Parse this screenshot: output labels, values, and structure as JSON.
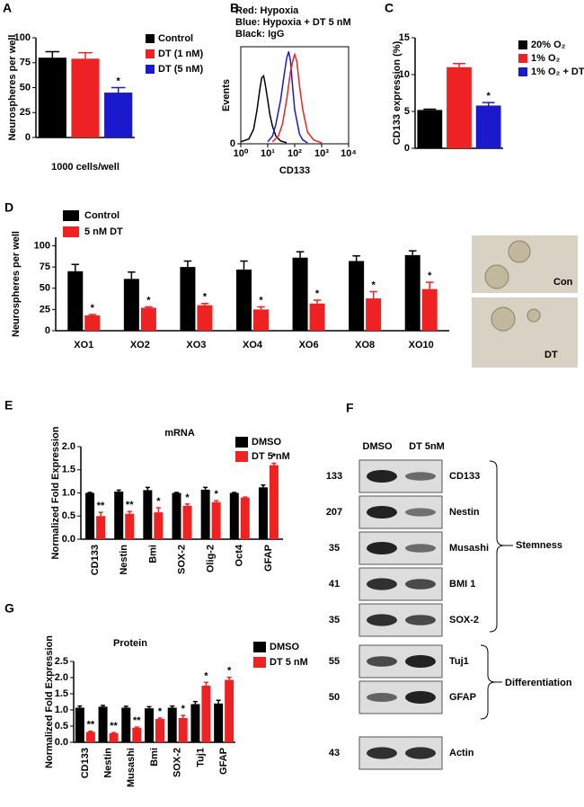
{
  "chart_data": [
    {
      "label": "A",
      "type": "bar",
      "ylabel": "Neurospheres per well",
      "xlabel": "1000 cells/well",
      "categories": [
        "Control",
        "DT (1 nM)",
        "DT (5 nM)"
      ],
      "colors": [
        "#000000",
        "#ee2222",
        "#1a1acc"
      ],
      "values": [
        80,
        79,
        45
      ],
      "errors": [
        6,
        6,
        5
      ],
      "stars": [
        null,
        null,
        "*"
      ],
      "ylim": [
        0,
        100
      ],
      "yticks": [
        0,
        25,
        50,
        75,
        100
      ],
      "legend": "upper right"
    },
    {
      "label": "B",
      "type": "line",
      "title_lines": [
        {
          "text": "Red: Hypoxia",
          "color": "#ee2222"
        },
        {
          "text": "Blue: Hypoxia + DT 5 nM",
          "color": "#1a1acc"
        },
        {
          "text": "Black: IgG",
          "color": "#000000"
        }
      ],
      "ylabel": "Events",
      "xlabel": "CD133",
      "xscale": "log",
      "xlim": [
        1,
        10000
      ],
      "xticks": [
        {
          "value": 1,
          "label": "10⁰"
        },
        {
          "value": 10,
          "label": "10¹"
        },
        {
          "value": 100,
          "label": "10²"
        },
        {
          "value": 1000,
          "label": "10³"
        },
        {
          "value": 10000,
          "label": "10⁴"
        }
      ],
      "ylim": [
        0,
        100
      ],
      "yticks": [
        0
      ],
      "series": [
        {
          "color": "#000000",
          "x": [
            1,
            2,
            3,
            4,
            5,
            6,
            7,
            8,
            10,
            12,
            15,
            20,
            30,
            50
          ],
          "values": [
            2,
            5,
            15,
            35,
            55,
            68,
            70,
            62,
            45,
            30,
            18,
            8,
            3,
            1
          ]
        },
        {
          "color": "#1a1acc",
          "x": [
            10,
            15,
            20,
            30,
            40,
            50,
            60,
            70,
            80,
            100,
            150,
            200,
            300
          ],
          "values": [
            2,
            8,
            20,
            45,
            70,
            88,
            95,
            85,
            65,
            35,
            10,
            4,
            1
          ]
        },
        {
          "color": "#ee2222",
          "x": [
            15,
            25,
            35,
            50,
            70,
            90,
            100,
            120,
            150,
            200,
            300,
            500,
            1000
          ],
          "values": [
            2,
            8,
            20,
            45,
            75,
            88,
            92,
            85,
            60,
            35,
            12,
            4,
            1
          ]
        }
      ]
    },
    {
      "label": "C",
      "type": "bar",
      "ylabel": "CD133 expression (%)",
      "categories": [
        "20% O₂",
        "1% O₂",
        "1% O₂ + DT"
      ],
      "colors": [
        "#000000",
        "#ee2222",
        "#1a1acc"
      ],
      "values": [
        5.2,
        11,
        5.8
      ],
      "errors": [
        0.1,
        0.5,
        0.4
      ],
      "stars": [
        null,
        null,
        "*"
      ],
      "ylim": [
        0,
        15
      ],
      "yticks": [
        0,
        5,
        10,
        15
      ],
      "legend": "upper right"
    },
    {
      "label": "D",
      "type": "bar",
      "ylabel": "Neurospheres per well",
      "categories": [
        "XO1",
        "XO2",
        "XO3",
        "XO4",
        "XO6",
        "XO8",
        "XO10"
      ],
      "ylim": [
        0,
        110
      ],
      "yticks": [
        0,
        25,
        50,
        75,
        100
      ],
      "legend": "upper left",
      "series": [
        {
          "name": "Control",
          "color": "#000000",
          "values": [
            70,
            61,
            75,
            72,
            86,
            82,
            89
          ],
          "errors": [
            8,
            8,
            7,
            10,
            7,
            6,
            5
          ]
        },
        {
          "name": "5 nM DT",
          "color": "#ee2222",
          "values": [
            18,
            27,
            30,
            25,
            32,
            38,
            49
          ],
          "errors": [
            1,
            1,
            2,
            3,
            4,
            8,
            8
          ],
          "stars": [
            "*",
            "*",
            "*",
            "*",
            "*",
            "*",
            "*"
          ]
        }
      ]
    },
    {
      "label": "E",
      "type": "bar",
      "title": "mRNA",
      "ylabel": "Normalized Fold Expression",
      "categories": [
        "CD133",
        "Nestin",
        "Bmi",
        "SOX-2",
        "Olig-2",
        "Oct4",
        "GFAP"
      ],
      "category_colors": [
        "#000000",
        "#000000",
        "#000000",
        "#000000",
        "#000000",
        "#000000",
        "#ee2222"
      ],
      "ylim": [
        0,
        2
      ],
      "yticks": [
        {
          "value": 0,
          "label": "0.0"
        },
        0.5,
        {
          "value": 1,
          "label": "1.0"
        },
        1.5,
        {
          "value": 2,
          "label": "2.0"
        }
      ],
      "legend": "upper right",
      "series": [
        {
          "name": "DMSO",
          "color": "#000000",
          "values": [
            1,
            1.03,
            1.06,
            1,
            1.07,
            1,
            1.12
          ],
          "errors": [
            0.01,
            0.03,
            0.06,
            0.01,
            0.05,
            0.01,
            0.05
          ]
        },
        {
          "name": "DT 5 nM",
          "color": "#ee2222",
          "values": [
            0.5,
            0.55,
            0.58,
            0.72,
            0.8,
            0.9,
            1.6
          ],
          "errors": [
            0.08,
            0.05,
            0.1,
            0.04,
            0.03,
            0.01,
            0.04
          ],
          "stars": [
            "**",
            "**",
            "*",
            "*",
            "*",
            null,
            "*"
          ]
        }
      ]
    },
    {
      "label": "G",
      "type": "bar",
      "title": "Protein",
      "ylabel": "Normalized Fold Expression",
      "categories": [
        "CD133",
        "Nestin",
        "Musashi",
        "Bmi",
        "SOX-2",
        "Tuj1",
        "GFAP"
      ],
      "category_colors": [
        "#000000",
        "#000000",
        "#000000",
        "#000000",
        "#000000",
        "#ee2222",
        "#ee2222"
      ],
      "ylim": [
        0,
        2.5
      ],
      "yticks": [
        {
          "value": 0,
          "label": "0.0"
        },
        0.5,
        {
          "value": 1,
          "label": "1.0"
        },
        1.5,
        {
          "value": 2,
          "label": "2.0"
        },
        2.5
      ],
      "legend": "upper right",
      "series": [
        {
          "name": "DMSO",
          "color": "#000000",
          "values": [
            1.07,
            1.1,
            1.07,
            1.05,
            1.07,
            1.18,
            1.2
          ],
          "errors": [
            0.05,
            0.04,
            0.04,
            0.05,
            0.05,
            0.08,
            0.1
          ]
        },
        {
          "name": "DT 5 nM",
          "color": "#ee2222",
          "values": [
            0.32,
            0.28,
            0.45,
            0.72,
            0.75,
            1.75,
            1.93
          ],
          "errors": [
            0.02,
            0.02,
            0.02,
            0.03,
            0.08,
            0.1,
            0.08
          ],
          "stars": [
            "**",
            "**",
            "**",
            "*",
            "*",
            "*",
            "*"
          ]
        }
      ]
    }
  ],
  "photos": [
    {
      "label": "Con"
    },
    {
      "label": "DT"
    }
  ],
  "blot": {
    "label": "F",
    "lanes": [
      "DMSO",
      "DT 5nM"
    ],
    "rows": [
      {
        "mw": "133",
        "name": "CD133"
      },
      {
        "mw": "207",
        "name": "Nestin"
      },
      {
        "mw": "35",
        "name": "Musashi"
      },
      {
        "mw": "41",
        "name": "BMI 1"
      },
      {
        "mw": "35",
        "name": "SOX-2"
      },
      {
        "mw": "55",
        "name": "Tuj1"
      },
      {
        "mw": "50",
        "name": "GFAP"
      },
      {
        "mw": "43",
        "name": "Actin"
      }
    ],
    "groups": [
      {
        "name": "Stemness"
      },
      {
        "name": "Differentiation"
      }
    ]
  }
}
